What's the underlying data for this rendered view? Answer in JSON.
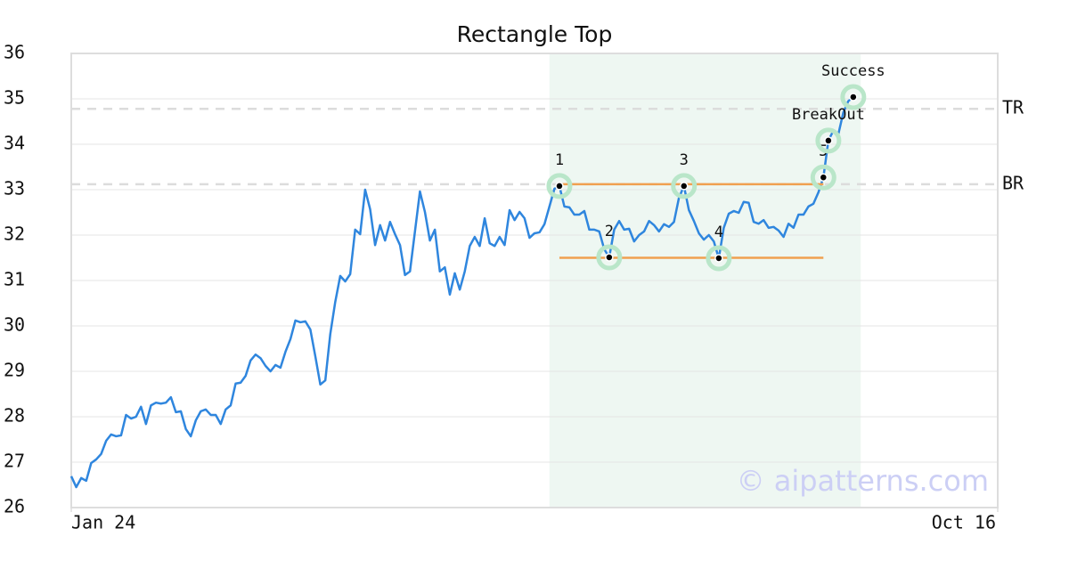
{
  "chart_data": {
    "type": "line",
    "title": "Rectangle Top",
    "xlim": [
      0,
      186
    ],
    "xticks": [
      {
        "value": 0,
        "label": "Jan 24"
      },
      {
        "value": 186,
        "label": "Oct 16"
      }
    ],
    "ylim": [
      26,
      36
    ],
    "yticks": [
      26,
      27,
      28,
      29,
      30,
      31,
      32,
      33,
      34,
      35,
      36
    ],
    "grid": true,
    "series": [
      {
        "color": "#2f86de",
        "values": [
          26.69,
          26.45,
          26.65,
          26.59,
          26.98,
          27.06,
          27.18,
          27.47,
          27.61,
          27.57,
          27.59,
          28.04,
          27.96,
          28.0,
          28.22,
          27.84,
          28.25,
          28.31,
          28.29,
          28.31,
          28.43,
          28.1,
          28.12,
          27.73,
          27.57,
          27.92,
          28.12,
          28.16,
          28.04,
          28.04,
          27.84,
          28.16,
          28.25,
          28.73,
          28.75,
          28.9,
          29.24,
          29.37,
          29.29,
          29.12,
          29.0,
          29.14,
          29.08,
          29.43,
          29.71,
          30.12,
          30.08,
          30.1,
          29.92,
          29.33,
          28.71,
          28.8,
          29.82,
          30.53,
          31.1,
          30.98,
          31.14,
          32.12,
          32.02,
          33.0,
          32.57,
          31.78,
          32.22,
          31.88,
          32.29,
          32.02,
          31.78,
          31.12,
          31.2,
          32.08,
          32.96,
          32.51,
          31.88,
          32.12,
          31.2,
          31.29,
          30.69,
          31.16,
          30.8,
          31.2,
          31.76,
          31.96,
          31.76,
          32.37,
          31.82,
          31.76,
          31.96,
          31.78,
          32.55,
          32.33,
          32.51,
          32.37,
          31.94,
          32.04,
          32.06,
          32.24,
          32.63,
          33.02,
          33.08,
          32.63,
          32.61,
          32.45,
          32.45,
          32.53,
          32.12,
          32.12,
          32.08,
          31.69,
          31.51,
          32.12,
          32.31,
          32.12,
          32.14,
          31.86,
          32.0,
          32.08,
          32.31,
          32.22,
          32.08,
          32.24,
          32.18,
          32.29,
          32.82,
          33.08,
          32.55,
          32.31,
          32.04,
          31.9,
          32.0,
          31.86,
          31.49,
          32.16,
          32.47,
          32.53,
          32.49,
          32.73,
          32.71,
          32.29,
          32.25,
          32.33,
          32.16,
          32.18,
          32.1,
          31.96,
          32.25,
          32.16,
          32.45,
          32.45,
          32.63,
          32.69,
          32.94,
          33.27,
          34.08,
          34.3,
          34.22,
          34.7,
          34.95,
          35.04
        ]
      }
    ],
    "highlight_x": [
      96,
      158.5
    ],
    "levels": [
      {
        "y": 33.12,
        "x": [
          98,
          151
        ],
        "color": "#f0a050"
      },
      {
        "y": 31.5,
        "x": [
          98,
          151
        ],
        "color": "#f0a050"
      }
    ],
    "reference_lines": [
      {
        "label": "TR",
        "y": 34.78
      },
      {
        "label": "BR",
        "y": 33.12
      }
    ],
    "pattern_points": [
      {
        "label": "1",
        "x": 98,
        "y": 33.08
      },
      {
        "label": "2",
        "x": 108,
        "y": 31.51
      },
      {
        "label": "3",
        "x": 123,
        "y": 33.08
      },
      {
        "label": "4",
        "x": 130,
        "y": 31.49
      },
      {
        "label": "5",
        "x": 151,
        "y": 33.27
      },
      {
        "label": "BreakOut",
        "x": 152,
        "y": 34.08
      },
      {
        "label": "Success",
        "x": 157,
        "y": 35.04
      }
    ],
    "watermark": "© aipatterns.com"
  }
}
